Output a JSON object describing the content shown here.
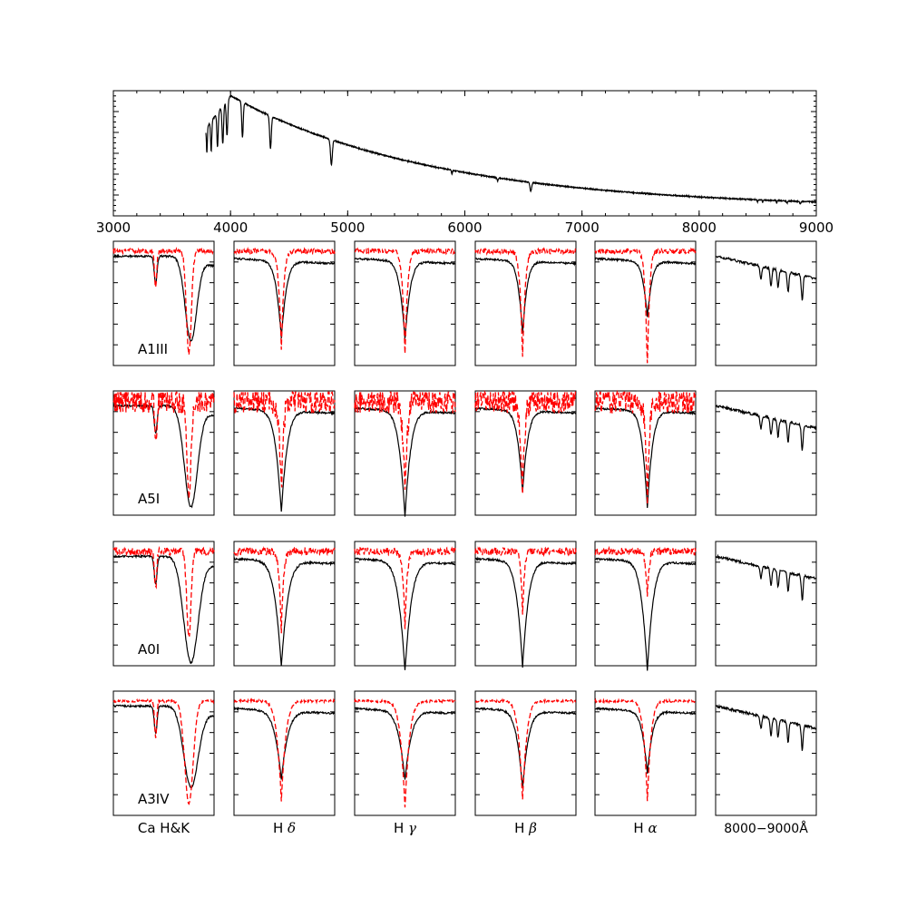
{
  "chart_data": {
    "type": "line",
    "overview": {
      "x_ticks": [
        "3000",
        "4000",
        "5000",
        "6000",
        "7000",
        "8000",
        "9000"
      ],
      "xlim": [
        3000,
        9000
      ],
      "lines": [
        {
          "center": 3934,
          "depth": 0.3,
          "width": 9
        },
        {
          "center": 3970,
          "depth": 0.28,
          "width": 9
        },
        {
          "center": 3889,
          "depth": 0.27,
          "width": 8
        },
        {
          "center": 3835,
          "depth": 0.24,
          "width": 7
        },
        {
          "center": 3798,
          "depth": 0.2,
          "width": 6
        },
        {
          "center": 4102,
          "depth": 0.28,
          "width": 9
        },
        {
          "center": 4341,
          "depth": 0.26,
          "width": 10
        },
        {
          "center": 4861,
          "depth": 0.2,
          "width": 11
        },
        {
          "center": 5890,
          "depth": 0.035,
          "width": 5
        },
        {
          "center": 6280,
          "depth": 0.025,
          "width": 6
        },
        {
          "center": 6563,
          "depth": 0.07,
          "width": 10
        },
        {
          "center": 8498,
          "depth": 0.018,
          "width": 4
        },
        {
          "center": 8542,
          "depth": 0.022,
          "width": 4
        },
        {
          "center": 8662,
          "depth": 0.022,
          "width": 4
        },
        {
          "center": 8750,
          "depth": 0.018,
          "width": 6
        },
        {
          "center": 8863,
          "depth": 0.02,
          "width": 7
        }
      ]
    },
    "panel_columns": [
      {
        "key": "cahk",
        "label": "Ca H&K",
        "label_style": "plain"
      },
      {
        "key": "hdelta",
        "label_prefix": "H",
        "label_greek": "δ",
        "label_style": "greek"
      },
      {
        "key": "hgamma",
        "label_prefix": "H",
        "label_greek": "γ",
        "label_style": "greek"
      },
      {
        "key": "hbeta",
        "label_prefix": "H",
        "label_greek": "β",
        "label_style": "greek"
      },
      {
        "key": "halpha",
        "label_prefix": "H",
        "label_greek": "α",
        "label_style": "greek"
      },
      {
        "key": "nir",
        "label": "8000−9000Å",
        "label_style": "math"
      }
    ],
    "rows": [
      {
        "spectral_type": "A1III",
        "black": {
          "depth": [
            0.65,
            0.62,
            0.63,
            0.58,
            0.45
          ],
          "width": [
            0.08,
            0.08,
            0.08,
            0.07,
            0.07
          ]
        },
        "red": {
          "depth": [
            0.82,
            0.78,
            0.82,
            0.85,
            0.95
          ],
          "width": [
            0.035,
            0.035,
            0.035,
            0.035,
            0.03
          ],
          "noise": 0.02
        }
      },
      {
        "spectral_type": "A5I",
        "black": {
          "depth": [
            0.78,
            0.82,
            0.85,
            0.65,
            0.78
          ],
          "width": [
            0.09,
            0.09,
            0.09,
            0.08,
            0.08
          ]
        },
        "red": {
          "depth": [
            0.78,
            0.75,
            0.8,
            0.78,
            0.78
          ],
          "width": [
            0.03,
            0.03,
            0.03,
            0.03,
            0.03
          ],
          "noise": 0.1
        }
      },
      {
        "spectral_type": "A0I",
        "black": {
          "depth": [
            0.82,
            0.85,
            0.88,
            0.85,
            0.88
          ],
          "width": [
            0.1,
            0.1,
            0.1,
            0.09,
            0.09
          ]
        },
        "red": {
          "depth": [
            0.68,
            0.65,
            0.6,
            0.5,
            0.35
          ],
          "width": [
            0.03,
            0.03,
            0.03,
            0.025,
            0.025
          ],
          "noise": 0.03
        }
      },
      {
        "spectral_type": "A3IV",
        "black": {
          "depth": [
            0.62,
            0.55,
            0.55,
            0.62,
            0.5
          ],
          "width": [
            0.1,
            0.1,
            0.1,
            0.09,
            0.08
          ]
        },
        "red": {
          "depth": [
            0.82,
            0.8,
            0.85,
            0.8,
            0.8
          ],
          "width": [
            0.06,
            0.06,
            0.06,
            0.055,
            0.05
          ],
          "noise": 0.01
        }
      }
    ],
    "colors": {
      "observed": "#000000",
      "template": "#ff0000"
    }
  }
}
